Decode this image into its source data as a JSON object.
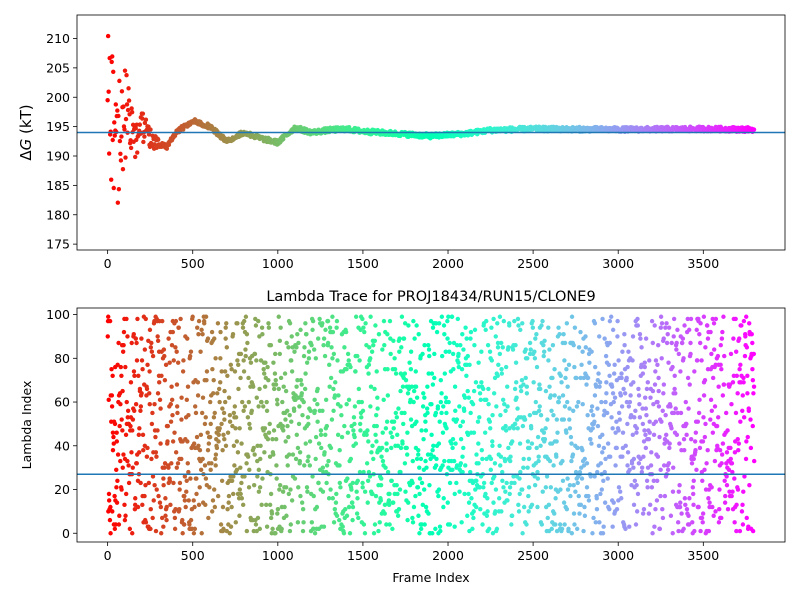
{
  "chart_data": [
    {
      "type": "scatter",
      "title": "",
      "xlabel": "",
      "ylabel": "ΔG (kT)",
      "xlim": [
        -180,
        3980
      ],
      "ylim": [
        174,
        214
      ],
      "xticks": [
        0,
        500,
        1000,
        1500,
        2000,
        2500,
        3000,
        3500
      ],
      "yticks": [
        175,
        180,
        185,
        190,
        195,
        200,
        205,
        210
      ],
      "reference_line": {
        "y": 194.0,
        "color": "#1f77b4"
      },
      "colormap": "rainbow (reversed: red at frame 0, purple at last frame)",
      "grid": false,
      "legend": "none",
      "series": [
        {
          "description": "running estimate per frame",
          "n_frames": 3800,
          "trend_points": [
            [
              0,
              190
            ],
            [
              20,
              180
            ],
            [
              30,
              210
            ],
            [
              40,
              200
            ],
            [
              50,
              196
            ],
            [
              60,
              188
            ],
            [
              80,
              192
            ],
            [
              100,
              199
            ],
            [
              150,
              192
            ],
            [
              200,
              195
            ],
            [
              250,
              193
            ],
            [
              300,
              192
            ],
            [
              350,
              191.5
            ],
            [
              400,
              194
            ],
            [
              500,
              196
            ],
            [
              600,
              195
            ],
            [
              700,
              192.5
            ],
            [
              800,
              194
            ],
            [
              900,
              193
            ],
            [
              1000,
              192.3
            ],
            [
              1100,
              194.8
            ],
            [
              1200,
              194
            ],
            [
              1300,
              194.4
            ],
            [
              1400,
              194.6
            ],
            [
              1500,
              194.2
            ],
            [
              1700,
              193.8
            ],
            [
              1900,
              193.4
            ],
            [
              2100,
              193.8
            ],
            [
              2250,
              194.4
            ],
            [
              2500,
              194.6
            ],
            [
              3000,
              194.5
            ],
            [
              3500,
              194.6
            ],
            [
              3800,
              194.5
            ]
          ]
        }
      ]
    },
    {
      "type": "scatter",
      "title": "Lambda Trace for PROJ18434/RUN15/CLONE9",
      "xlabel": "Frame Index",
      "ylabel": "Lambda Index",
      "xlim": [
        -180,
        3980
      ],
      "ylim": [
        -4,
        103
      ],
      "xticks": [
        0,
        500,
        1000,
        1500,
        2000,
        2500,
        3000,
        3500
      ],
      "yticks": [
        0,
        20,
        40,
        60,
        80,
        100
      ],
      "reference_line": {
        "y": 27,
        "color": "#1f77b4"
      },
      "colormap": "rainbow (reversed: red at frame 0, purple at last frame)",
      "grid": false,
      "legend": "none",
      "series": [
        {
          "description": "lambda index visited at each frame, roughly uniform over 0-99",
          "n_frames": 3800,
          "lambda_range": [
            0,
            99
          ]
        }
      ]
    }
  ]
}
